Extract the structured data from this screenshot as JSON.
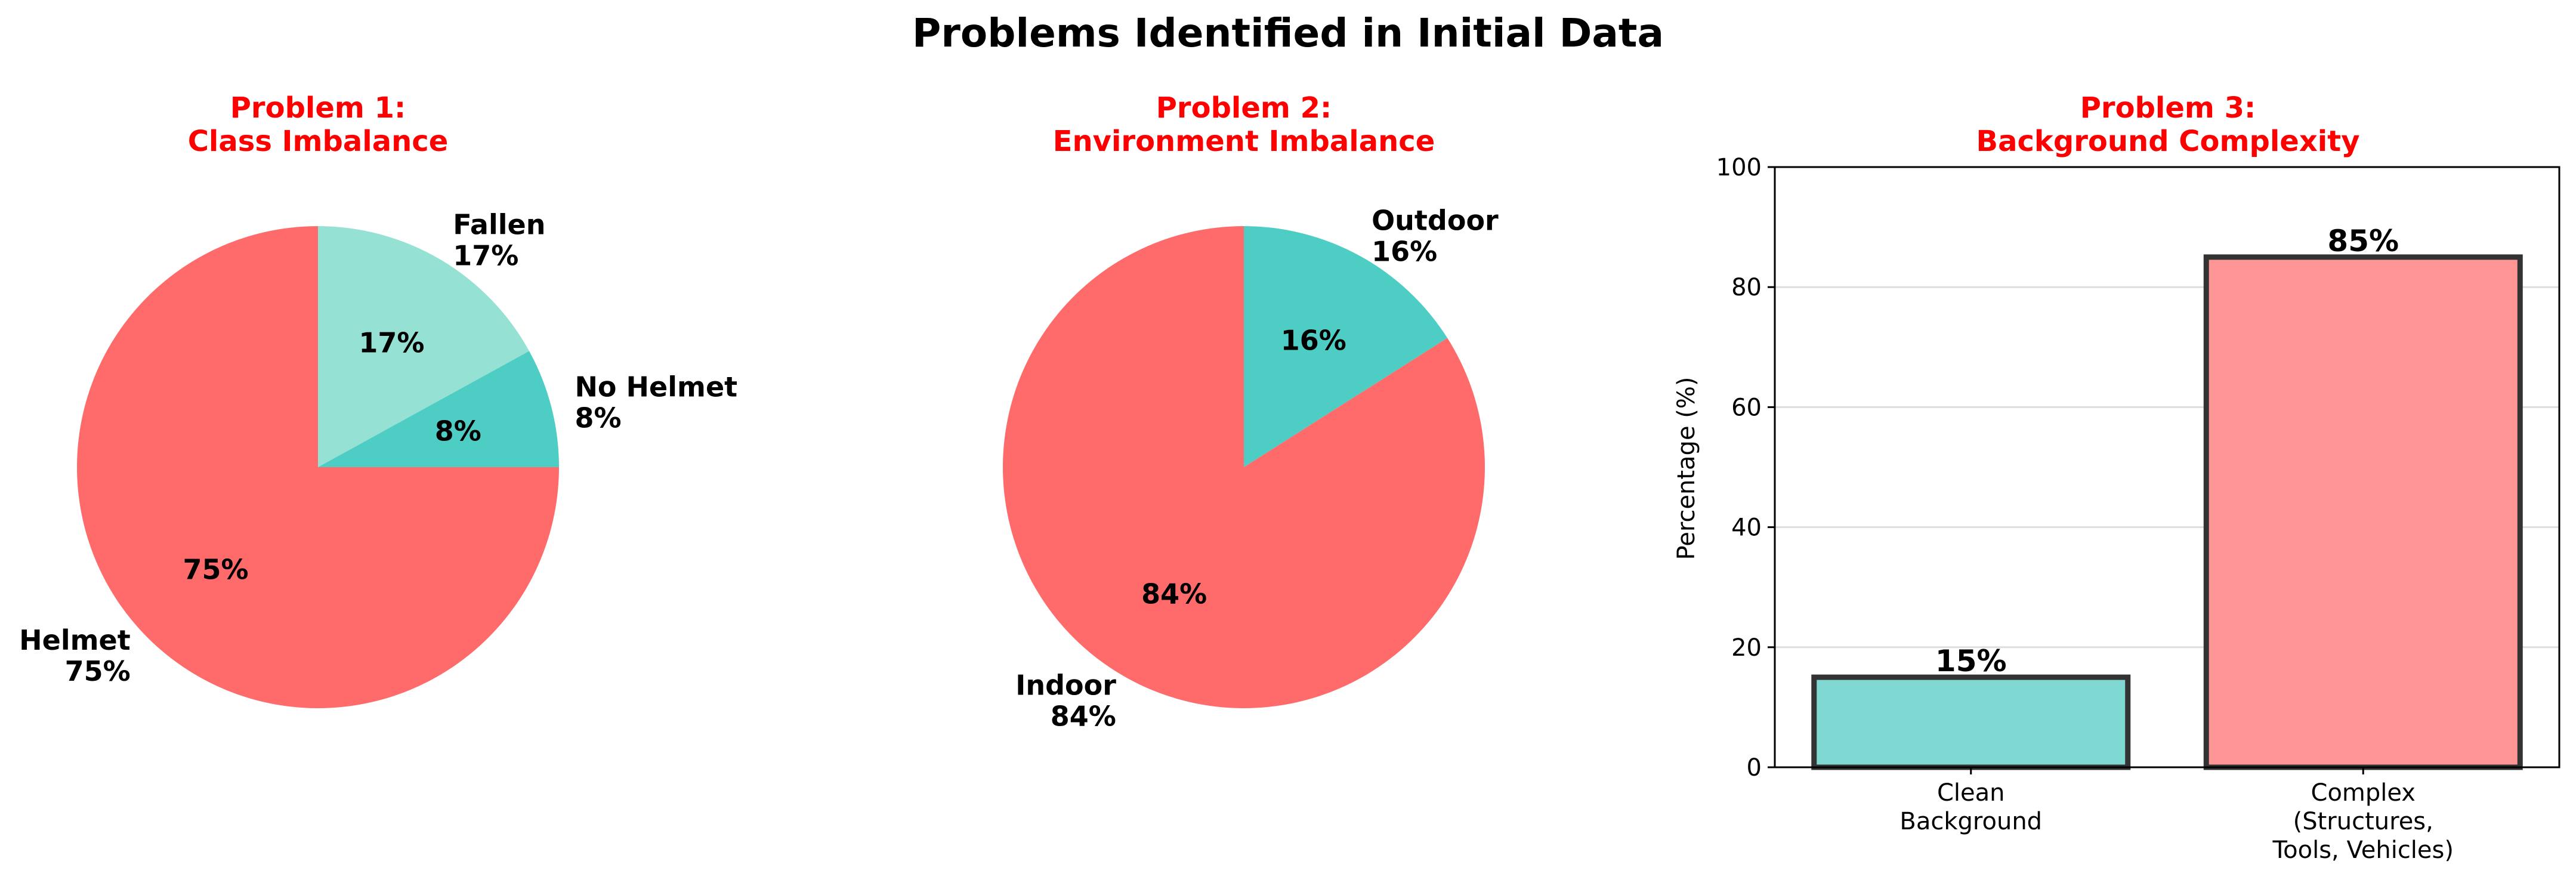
{
  "figure": {
    "title": "Problems Identified in Initial Data"
  },
  "colors": {
    "title_red": "#ff0000",
    "helmet_red": "#ff6b6b",
    "teal": "#4ecdc4",
    "light_teal": "#95e1d3",
    "bar_clean": "#7fd9d2",
    "bar_complex": "#ff9696",
    "bar_edge": "#333333"
  },
  "chart_data": [
    {
      "type": "pie",
      "title_line1": "Problem 1:",
      "title_line2": "Class Imbalance",
      "slices": [
        {
          "label": "Fallen",
          "value": 17,
          "pct_label": "17%",
          "color": "#95e1d3"
        },
        {
          "label": "No Helmet",
          "value": 8,
          "pct_label": "8%",
          "color": "#4ecdc4"
        },
        {
          "label": "Helmet",
          "value": 75,
          "pct_label": "75%",
          "color": "#ff6b6b"
        }
      ]
    },
    {
      "type": "pie",
      "title_line1": "Problem 2:",
      "title_line2": "Environment Imbalance",
      "slices": [
        {
          "label": "Outdoor",
          "value": 16,
          "pct_label": "16%",
          "color": "#4ecdc4"
        },
        {
          "label": "Indoor",
          "value": 84,
          "pct_label": "84%",
          "color": "#ff6b6b"
        }
      ]
    },
    {
      "type": "bar",
      "title_line1": "Problem 3:",
      "title_line2": "Background Complexity",
      "ylabel": "Percentage (%)",
      "ylim": [
        0,
        100
      ],
      "yticks": [
        0,
        20,
        40,
        60,
        80,
        100
      ],
      "grid": "horizontal",
      "categories": [
        [
          "Clean",
          "Background"
        ],
        [
          "Complex",
          "(Structures,",
          "Tools, Vehicles)"
        ]
      ],
      "values": [
        15,
        85
      ],
      "value_labels": [
        "15%",
        "85%"
      ],
      "bar_colors": [
        "#7fd9d2",
        "#ff9696"
      ]
    }
  ]
}
